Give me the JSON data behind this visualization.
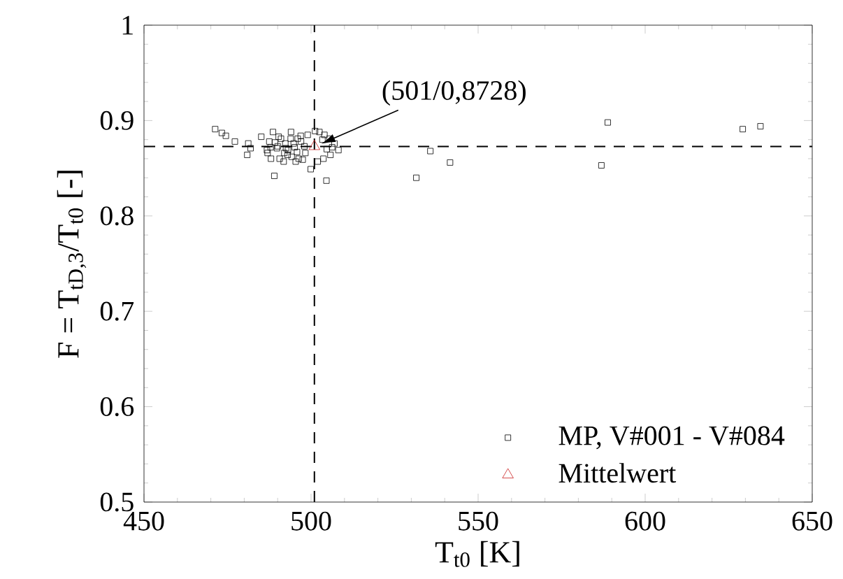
{
  "chart_data": {
    "type": "scatter",
    "xlabel": "T$_{t0}$ [K]",
    "ylabel": "F = T$_{tD,3}$/T$_{t0}$ [-]",
    "xlim": [
      450,
      650
    ],
    "ylim": [
      0.5,
      1
    ],
    "xticks": [
      450,
      500,
      550,
      600,
      650
    ],
    "yticks": [
      0.5,
      0.6,
      0.7,
      0.8,
      0.9,
      1
    ],
    "grid": false,
    "legend": "bottom right",
    "ref_lines": [
      {
        "axis": "x",
        "value": 501,
        "line_style": "dashed",
        "color": "#000000"
      },
      {
        "axis": "y",
        "value": 0.8728,
        "line_style": "dashed",
        "color": "#000000"
      }
    ],
    "annotations": [
      {
        "text": "(501/0,8728)",
        "x": 501,
        "y": 0.8728
      }
    ],
    "series": [
      {
        "name": "MP, V#001 - V#084",
        "color": "#000000",
        "marker": "square",
        "x": [
          471.3,
          473.3,
          474.5,
          477.2,
          481.2,
          481.9,
          480.9,
          485.1,
          488.6,
          487.0,
          488.0,
          487.5,
          490.3,
          489.8,
          490.6,
          492.3,
          492.0,
          493.1,
          493.9,
          494.2,
          494.0,
          495.1,
          495.4,
          496.3,
          497.0,
          489.0,
          499.9,
          504.6,
          501.2,
          502.5,
          503.4,
          504.7,
          508.2,
          503.7,
          486.8,
          489.2,
          491.0,
          491.8,
          493.0,
          495.8,
          496.9,
          498.0,
          498.3,
          497.5,
          505.5,
          506.3,
          507.0,
          505.8,
          504.0,
          502.0,
          490.0,
          492.5,
          494.8,
          496.0,
          487.9,
          499.0,
          531.5,
          535.7,
          541.6,
          586.9,
          588.8,
          629.2,
          634.5
        ],
        "values": [
          0.891,
          0.887,
          0.884,
          0.878,
          0.876,
          0.871,
          0.864,
          0.883,
          0.888,
          0.866,
          0.86,
          0.878,
          0.883,
          0.871,
          0.86,
          0.876,
          0.866,
          0.869,
          0.881,
          0.862,
          0.888,
          0.872,
          0.857,
          0.86,
          0.878,
          0.842,
          0.849,
          0.837,
          0.889,
          0.888,
          0.88,
          0.87,
          0.869,
          0.86,
          0.869,
          0.877,
          0.881,
          0.857,
          0.864,
          0.867,
          0.884,
          0.873,
          0.866,
          0.859,
          0.881,
          0.872,
          0.876,
          0.864,
          0.885,
          0.857,
          0.873,
          0.871,
          0.876,
          0.881,
          0.872,
          0.885,
          0.84,
          0.868,
          0.856,
          0.853,
          0.898,
          0.891,
          0.894
        ]
      },
      {
        "name": "Mittelwert",
        "color": "#cc2222",
        "marker": "triangle",
        "x": [
          501
        ],
        "values": [
          0.8728
        ]
      }
    ]
  }
}
